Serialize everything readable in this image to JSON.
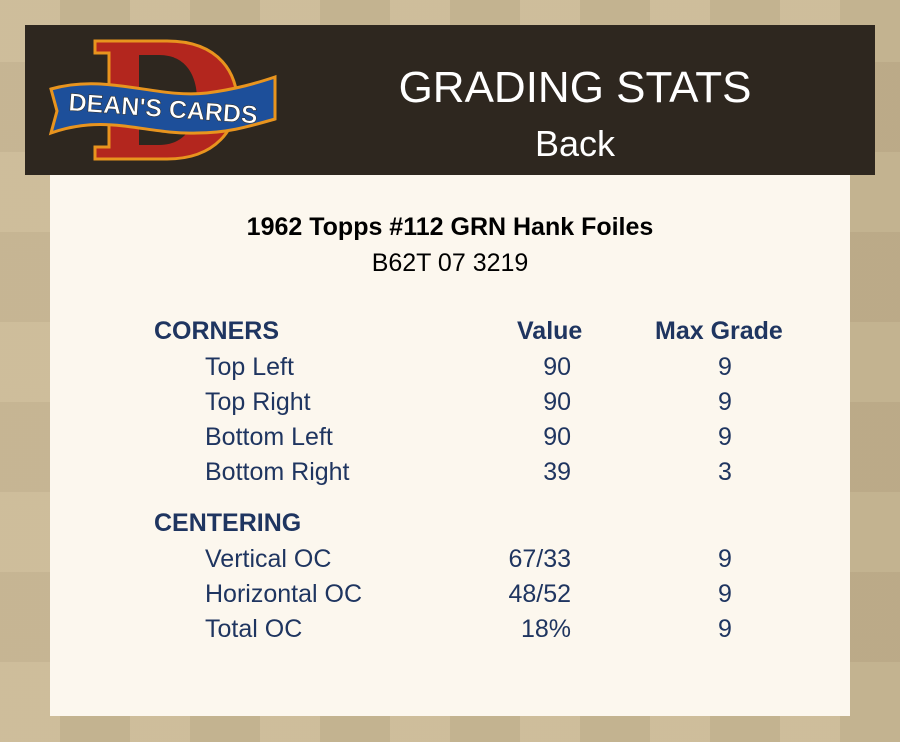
{
  "header": {
    "logo_text": "DEAN'S CARDS",
    "title": "GRADING STATS",
    "subtitle": "Back"
  },
  "card": {
    "title": "1962 Topps #112 GRN Hank Foiles",
    "code": "B62T 07 3219"
  },
  "columns": {
    "value": "Value",
    "max_grade": "Max Grade"
  },
  "sections": [
    {
      "name": "CORNERS",
      "rows": [
        {
          "label": "Top Left",
          "value": "90",
          "max": "9"
        },
        {
          "label": "Top Right",
          "value": "90",
          "max": "9"
        },
        {
          "label": "Bottom Left",
          "value": "90",
          "max": "9"
        },
        {
          "label": "Bottom Right",
          "value": "39",
          "max": "3"
        }
      ]
    },
    {
      "name": "CENTERING",
      "rows": [
        {
          "label": "Vertical OC",
          "value": "67/33",
          "max": "9"
        },
        {
          "label": "Horizontal OC",
          "value": "48/52",
          "max": "9"
        },
        {
          "label": "Total OC",
          "value": "18%",
          "max": "9"
        }
      ]
    }
  ],
  "colors": {
    "header_bg": "#2e271f",
    "panel_bg": "#fcf7ee",
    "text": "#1f3560",
    "logo_red": "#b3261e",
    "logo_blue": "#1d4f9a",
    "logo_orange": "#e8941e"
  }
}
